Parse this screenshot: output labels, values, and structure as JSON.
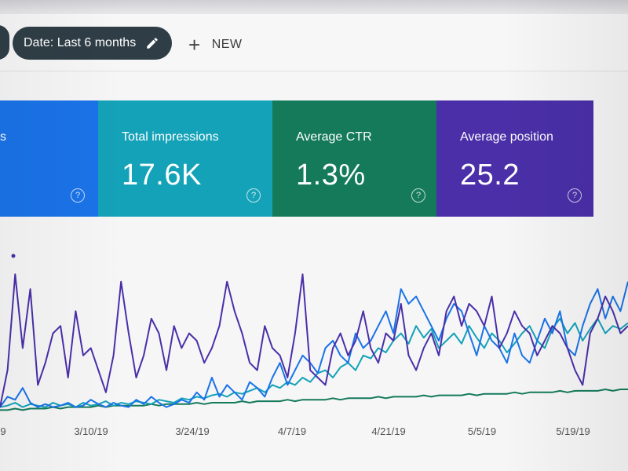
{
  "toolbar": {
    "date_label": "Date: Last 6 months",
    "new_label": "NEW",
    "plus_glyph": "+"
  },
  "cards": [
    {
      "key": "clicks",
      "label": "s",
      "value": "",
      "color": "#1a73e8",
      "help_glyph": "?"
    },
    {
      "key": "impressions",
      "label": "Total impressions",
      "value": "17.6K",
      "color": "#14a2b8",
      "help_glyph": "?"
    },
    {
      "key": "ctr",
      "label": "Average CTR",
      "value": "1.3%",
      "color": "#147a5a",
      "help_glyph": "?"
    },
    {
      "key": "position",
      "label": "Average position",
      "value": "25.2",
      "color": "#4a2fa8",
      "help_glyph": "?"
    }
  ],
  "chart_data": {
    "type": "line",
    "x_ticks": [
      "9",
      "3/10/19",
      "3/24/19",
      "4/7/19",
      "4/21/19",
      "5/5/19",
      "5/19/19"
    ],
    "series": [
      {
        "color": "#4a2fa8",
        "values": [
          0.05,
          0.3,
          0.95,
          0.45,
          0.85,
          0.2,
          0.35,
          0.55,
          0.6,
          0.25,
          0.7,
          0.4,
          0.45,
          0.3,
          0.15,
          0.4,
          0.9,
          0.55,
          0.25,
          0.4,
          0.65,
          0.55,
          0.3,
          0.6,
          0.45,
          0.55,
          0.5,
          0.35,
          0.45,
          0.6,
          0.9,
          0.7,
          0.55,
          0.35,
          0.3,
          0.6,
          0.45,
          0.4,
          0.25,
          0.55,
          0.95,
          0.3,
          0.25,
          0.2,
          0.45,
          0.55,
          0.4,
          0.5,
          0.7,
          0.45,
          0.35,
          0.55,
          0.5,
          0.75,
          0.4,
          0.3,
          0.45,
          0.55,
          0.4,
          0.7,
          0.8,
          0.6,
          0.75,
          0.7,
          0.6,
          0.8,
          0.45,
          0.55,
          0.7,
          0.6,
          0.55,
          0.4,
          0.5,
          0.6,
          0.55,
          0.45,
          0.3,
          0.2,
          0.55,
          0.65,
          0.8,
          0.7,
          0.55,
          0.6
        ]
      },
      {
        "color": "#1a73e8",
        "values": [
          0.05,
          0.12,
          0.1,
          0.18,
          0.08,
          0.05,
          0.07,
          0.05,
          0.06,
          0.08,
          0.05,
          0.06,
          0.1,
          0.07,
          0.05,
          0.08,
          0.06,
          0.05,
          0.1,
          0.07,
          0.12,
          0.08,
          0.05,
          0.07,
          0.1,
          0.08,
          0.15,
          0.1,
          0.25,
          0.12,
          0.2,
          0.15,
          0.1,
          0.22,
          0.18,
          0.12,
          0.25,
          0.35,
          0.2,
          0.3,
          0.4,
          0.35,
          0.28,
          0.45,
          0.5,
          0.4,
          0.35,
          0.55,
          0.45,
          0.5,
          0.6,
          0.7,
          0.55,
          0.85,
          0.75,
          0.8,
          0.7,
          0.6,
          0.5,
          0.65,
          0.75,
          0.7,
          0.55,
          0.4,
          0.6,
          0.5,
          0.45,
          0.35,
          0.55,
          0.4,
          0.35,
          0.5,
          0.65,
          0.55,
          0.7,
          0.45,
          0.4,
          0.6,
          0.75,
          0.85,
          0.65,
          0.8,
          0.7,
          0.9
        ]
      },
      {
        "color": "#14a2b8",
        "values": [
          0.05,
          0.06,
          0.08,
          0.05,
          0.07,
          0.06,
          0.05,
          0.08,
          0.06,
          0.07,
          0.05,
          0.08,
          0.06,
          0.07,
          0.09,
          0.06,
          0.08,
          0.07,
          0.09,
          0.08,
          0.07,
          0.1,
          0.09,
          0.08,
          0.11,
          0.1,
          0.12,
          0.11,
          0.13,
          0.14,
          0.12,
          0.15,
          0.14,
          0.16,
          0.18,
          0.15,
          0.2,
          0.18,
          0.22,
          0.2,
          0.25,
          0.22,
          0.28,
          0.3,
          0.25,
          0.32,
          0.35,
          0.3,
          0.4,
          0.38,
          0.45,
          0.42,
          0.5,
          0.55,
          0.48,
          0.6,
          0.52,
          0.58,
          0.45,
          0.5,
          0.55,
          0.48,
          0.6,
          0.52,
          0.45,
          0.55,
          0.5,
          0.42,
          0.48,
          0.55,
          0.6,
          0.5,
          0.45,
          0.58,
          0.65,
          0.55,
          0.62,
          0.5,
          0.58,
          0.65,
          0.55,
          0.6,
          0.58,
          0.62
        ]
      },
      {
        "color": "#147a5a",
        "values": [
          0.03,
          0.03,
          0.04,
          0.03,
          0.04,
          0.04,
          0.04,
          0.05,
          0.04,
          0.05,
          0.05,
          0.05,
          0.05,
          0.06,
          0.05,
          0.06,
          0.06,
          0.06,
          0.06,
          0.06,
          0.07,
          0.06,
          0.07,
          0.07,
          0.07,
          0.07,
          0.08,
          0.07,
          0.08,
          0.08,
          0.08,
          0.08,
          0.09,
          0.08,
          0.09,
          0.09,
          0.09,
          0.09,
          0.1,
          0.09,
          0.1,
          0.1,
          0.1,
          0.1,
          0.11,
          0.1,
          0.11,
          0.11,
          0.11,
          0.11,
          0.12,
          0.11,
          0.12,
          0.12,
          0.12,
          0.12,
          0.13,
          0.12,
          0.13,
          0.13,
          0.13,
          0.13,
          0.14,
          0.13,
          0.14,
          0.14,
          0.14,
          0.14,
          0.15,
          0.14,
          0.15,
          0.15,
          0.15,
          0.15,
          0.16,
          0.15,
          0.16,
          0.16,
          0.16,
          0.16,
          0.17,
          0.16,
          0.17,
          0.17
        ]
      }
    ],
    "ylim": [
      0,
      1
    ],
    "grid": false,
    "legend": "none"
  }
}
